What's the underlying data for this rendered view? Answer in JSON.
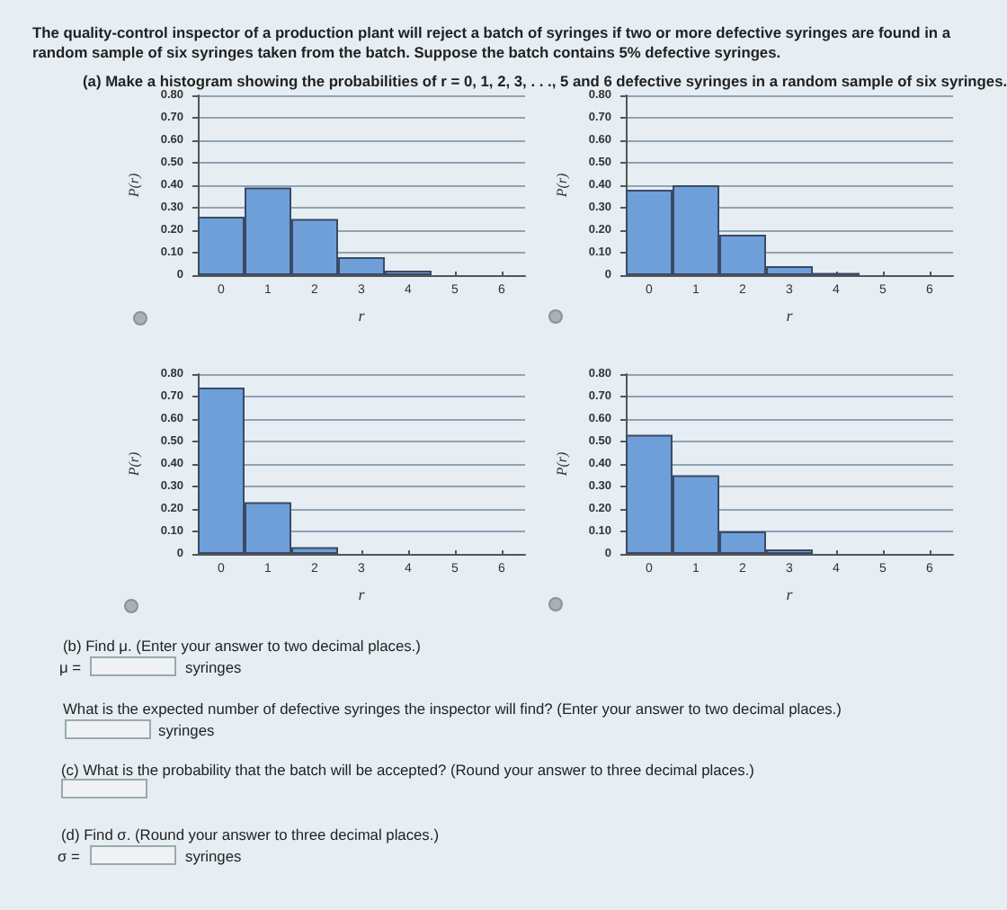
{
  "chart_data": [
    {
      "type": "bar",
      "title": "The quality-control inspector of a production plant will reject a batch of syringes if two or more defective syringes are found in a random sample of six syringes taken from the batch. Suppose the batch contains 5% defective syringes.",
      "subtitle": "(a) Make a histogram showing the probabilities of r = 0, 1, 2, 3, . . ., 5 and 6 defective syringes in a random sample of six syringes.",
      "xlabel": "r",
      "ylabel": "P(r)",
      "categories": [
        "0",
        "1",
        "2",
        "3",
        "4",
        "5",
        "6"
      ],
      "values": [
        0.26,
        0.39,
        0.25,
        0.08,
        0.02,
        0,
        0
      ],
      "color": "#6f9fd8",
      "ylim": [
        0,
        0.8
      ],
      "yticks": [
        {
          "value": 0,
          "label": "0"
        },
        {
          "value": 0.1,
          "label": "0.10"
        },
        {
          "value": 0.2,
          "label": "0.20"
        },
        {
          "value": 0.3,
          "label": "0.30"
        },
        {
          "value": 0.4,
          "label": "0.40"
        },
        {
          "value": 0.5,
          "label": "0.50"
        },
        {
          "value": 0.6,
          "label": "0.60"
        },
        {
          "value": 0.7,
          "label": "0.70"
        },
        {
          "value": 0.8,
          "label": "0.80"
        }
      ],
      "grid": "y"
    },
    {
      "type": "bar",
      "xlabel": "r",
      "ylabel": "P(r)",
      "categories": [
        "0",
        "1",
        "2",
        "3",
        "4",
        "5",
        "6"
      ],
      "values": [
        0.38,
        0.4,
        0.18,
        0.04,
        0.01,
        0,
        0
      ],
      "color": "#6f9fd8",
      "ylim": [
        0,
        0.8
      ],
      "yticks": [
        {
          "value": 0,
          "label": "0"
        },
        {
          "value": 0.1,
          "label": "0.10"
        },
        {
          "value": 0.2,
          "label": "0.20"
        },
        {
          "value": 0.3,
          "label": "0.30"
        },
        {
          "value": 0.4,
          "label": "0.40"
        },
        {
          "value": 0.5,
          "label": "0.50"
        },
        {
          "value": 0.6,
          "label": "0.60"
        },
        {
          "value": 0.7,
          "label": "0.70"
        },
        {
          "value": 0.8,
          "label": "0.80"
        }
      ],
      "grid": "y"
    },
    {
      "type": "bar",
      "xlabel": "r",
      "ylabel": "P(r)",
      "categories": [
        "0",
        "1",
        "2",
        "3",
        "4",
        "5",
        "6"
      ],
      "values": [
        0.74,
        0.23,
        0.03,
        0,
        0,
        0,
        0
      ],
      "color": "#6f9fd8",
      "ylim": [
        0,
        0.8
      ],
      "yticks": [
        {
          "value": 0,
          "label": "0"
        },
        {
          "value": 0.1,
          "label": "0.10"
        },
        {
          "value": 0.2,
          "label": "0.20"
        },
        {
          "value": 0.3,
          "label": "0.30"
        },
        {
          "value": 0.4,
          "label": "0.40"
        },
        {
          "value": 0.5,
          "label": "0.50"
        },
        {
          "value": 0.6,
          "label": "0.60"
        },
        {
          "value": 0.7,
          "label": "0.70"
        },
        {
          "value": 0.8,
          "label": "0.80"
        }
      ],
      "grid": "y"
    },
    {
      "type": "bar",
      "xlabel": "r",
      "ylabel": "P(r)",
      "categories": [
        "0",
        "1",
        "2",
        "3",
        "4",
        "5",
        "6"
      ],
      "values": [
        0.53,
        0.35,
        0.1,
        0.02,
        0,
        0,
        0
      ],
      "color": "#6f9fd8",
      "ylim": [
        0,
        0.8
      ],
      "yticks": [
        {
          "value": 0,
          "label": "0"
        },
        {
          "value": 0.1,
          "label": "0.10"
        },
        {
          "value": 0.2,
          "label": "0.20"
        },
        {
          "value": 0.3,
          "label": "0.30"
        },
        {
          "value": 0.4,
          "label": "0.40"
        },
        {
          "value": 0.5,
          "label": "0.50"
        },
        {
          "value": 0.6,
          "label": "0.60"
        },
        {
          "value": 0.7,
          "label": "0.70"
        },
        {
          "value": 0.8,
          "label": "0.80"
        }
      ],
      "grid": "y",
      "annotations": [
        "(b) Find μ. (Enter your answer to two decimal places.)",
        "μ =",
        "syringes",
        "What is the expected number of defective syringes the inspector will find? (Enter your answer to two decimal places.)",
        "syringes",
        "(c) What is the probability that the batch will be accepted? (Round your answer to three decimal places.)",
        "(d) Find σ. (Round your answer to three decimal places.)",
        "σ =",
        "syringes"
      ]
    }
  ]
}
